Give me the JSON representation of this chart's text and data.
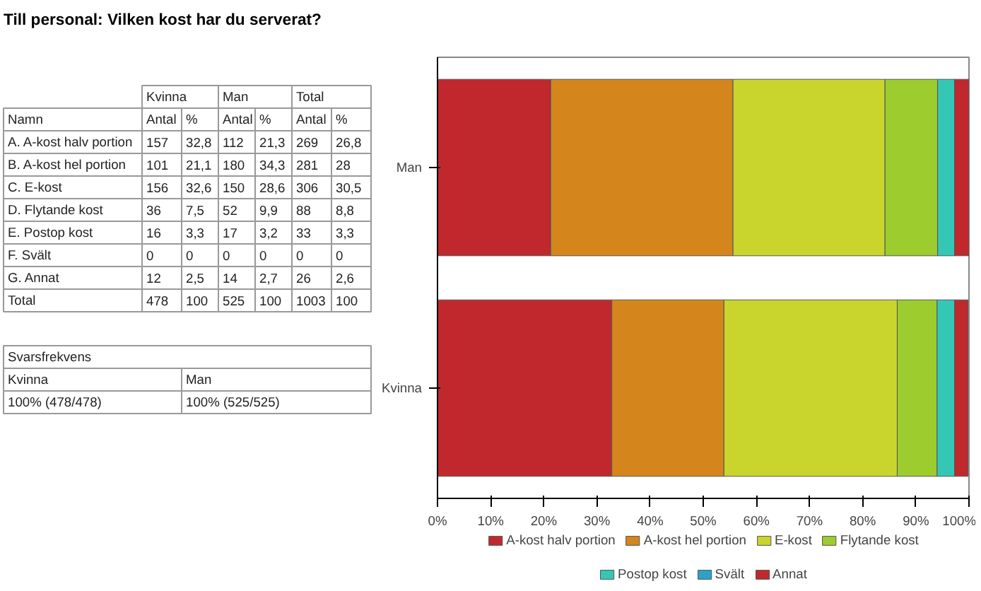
{
  "chart_data": [
    {
      "type": "other",
      "title": "Till personal: Vilken kost har du serverat?",
      "annotations": [
        "Kvinna",
        "Man",
        "Total",
        "Namn",
        "Antal",
        "%",
        "Antal",
        "%",
        "Antal",
        "%",
        "A. A-kost halv portion",
        "157",
        "32,8",
        "112",
        "21,3",
        "269",
        "26,8",
        "B. A-kost hel portion",
        "101",
        "21,1",
        "180",
        "34,3",
        "281",
        "28",
        "C. E-kost",
        "156",
        "32,6",
        "150",
        "28,6",
        "306",
        "30,5",
        "D. Flytande kost",
        "36",
        "7,5",
        "52",
        "9,9",
        "88",
        "8,8",
        "E. Postop kost",
        "16",
        "3,3",
        "17",
        "3,2",
        "33",
        "3,3",
        "F. Svält",
        "0",
        "0",
        "0",
        "0",
        "0",
        "0",
        "G. Annat",
        "12",
        "2,5",
        "14",
        "2,7",
        "26",
        "2,6",
        "Total",
        "478",
        "100",
        "525",
        "100",
        "1003",
        "100",
        "Svarsfrekvens",
        "Kvinna",
        "Man",
        "100% (478/478)",
        "100% (525/525)"
      ]
    },
    {
      "type": "bar",
      "orientation": "horizontal",
      "stacked": true,
      "categories": [
        "Man",
        "Kvinna"
      ],
      "series": [
        {
          "name": "A-kost halv portion",
          "color": "#c0282d",
          "values": [
            21.3,
            32.8
          ]
        },
        {
          "name": "A-kost hel portion",
          "color": "#d4861c",
          "values": [
            34.3,
            21.1
          ]
        },
        {
          "name": "E-kost",
          "color": "#c9d52c",
          "values": [
            28.6,
            32.6
          ]
        },
        {
          "name": "Flytande kost",
          "color": "#9ccc2e",
          "values": [
            9.9,
            7.5
          ]
        },
        {
          "name": "Postop kost",
          "color": "#35c7b5",
          "values": [
            3.2,
            3.3
          ]
        },
        {
          "name": "Svält",
          "color": "#2aa3c9",
          "values": [
            0,
            0
          ]
        },
        {
          "name": "Annat",
          "color": "#c0282d",
          "values": [
            2.7,
            2.5
          ]
        }
      ],
      "xlim": [
        0,
        100
      ],
      "xticks": [
        {
          "value": 0,
          "label": "0%"
        },
        {
          "value": 10,
          "label": "10%"
        },
        {
          "value": 20,
          "label": "20%"
        },
        {
          "value": 30,
          "label": "30%"
        },
        {
          "value": 40,
          "label": "40%"
        },
        {
          "value": 50,
          "label": "50%"
        },
        {
          "value": 60,
          "label": "60%"
        },
        {
          "value": 70,
          "label": "70%"
        },
        {
          "value": 80,
          "label": "80%"
        },
        {
          "value": 90,
          "label": "90%"
        },
        {
          "value": 100,
          "label": "100%"
        }
      ],
      "grid": false,
      "legend": "bottom"
    }
  ]
}
